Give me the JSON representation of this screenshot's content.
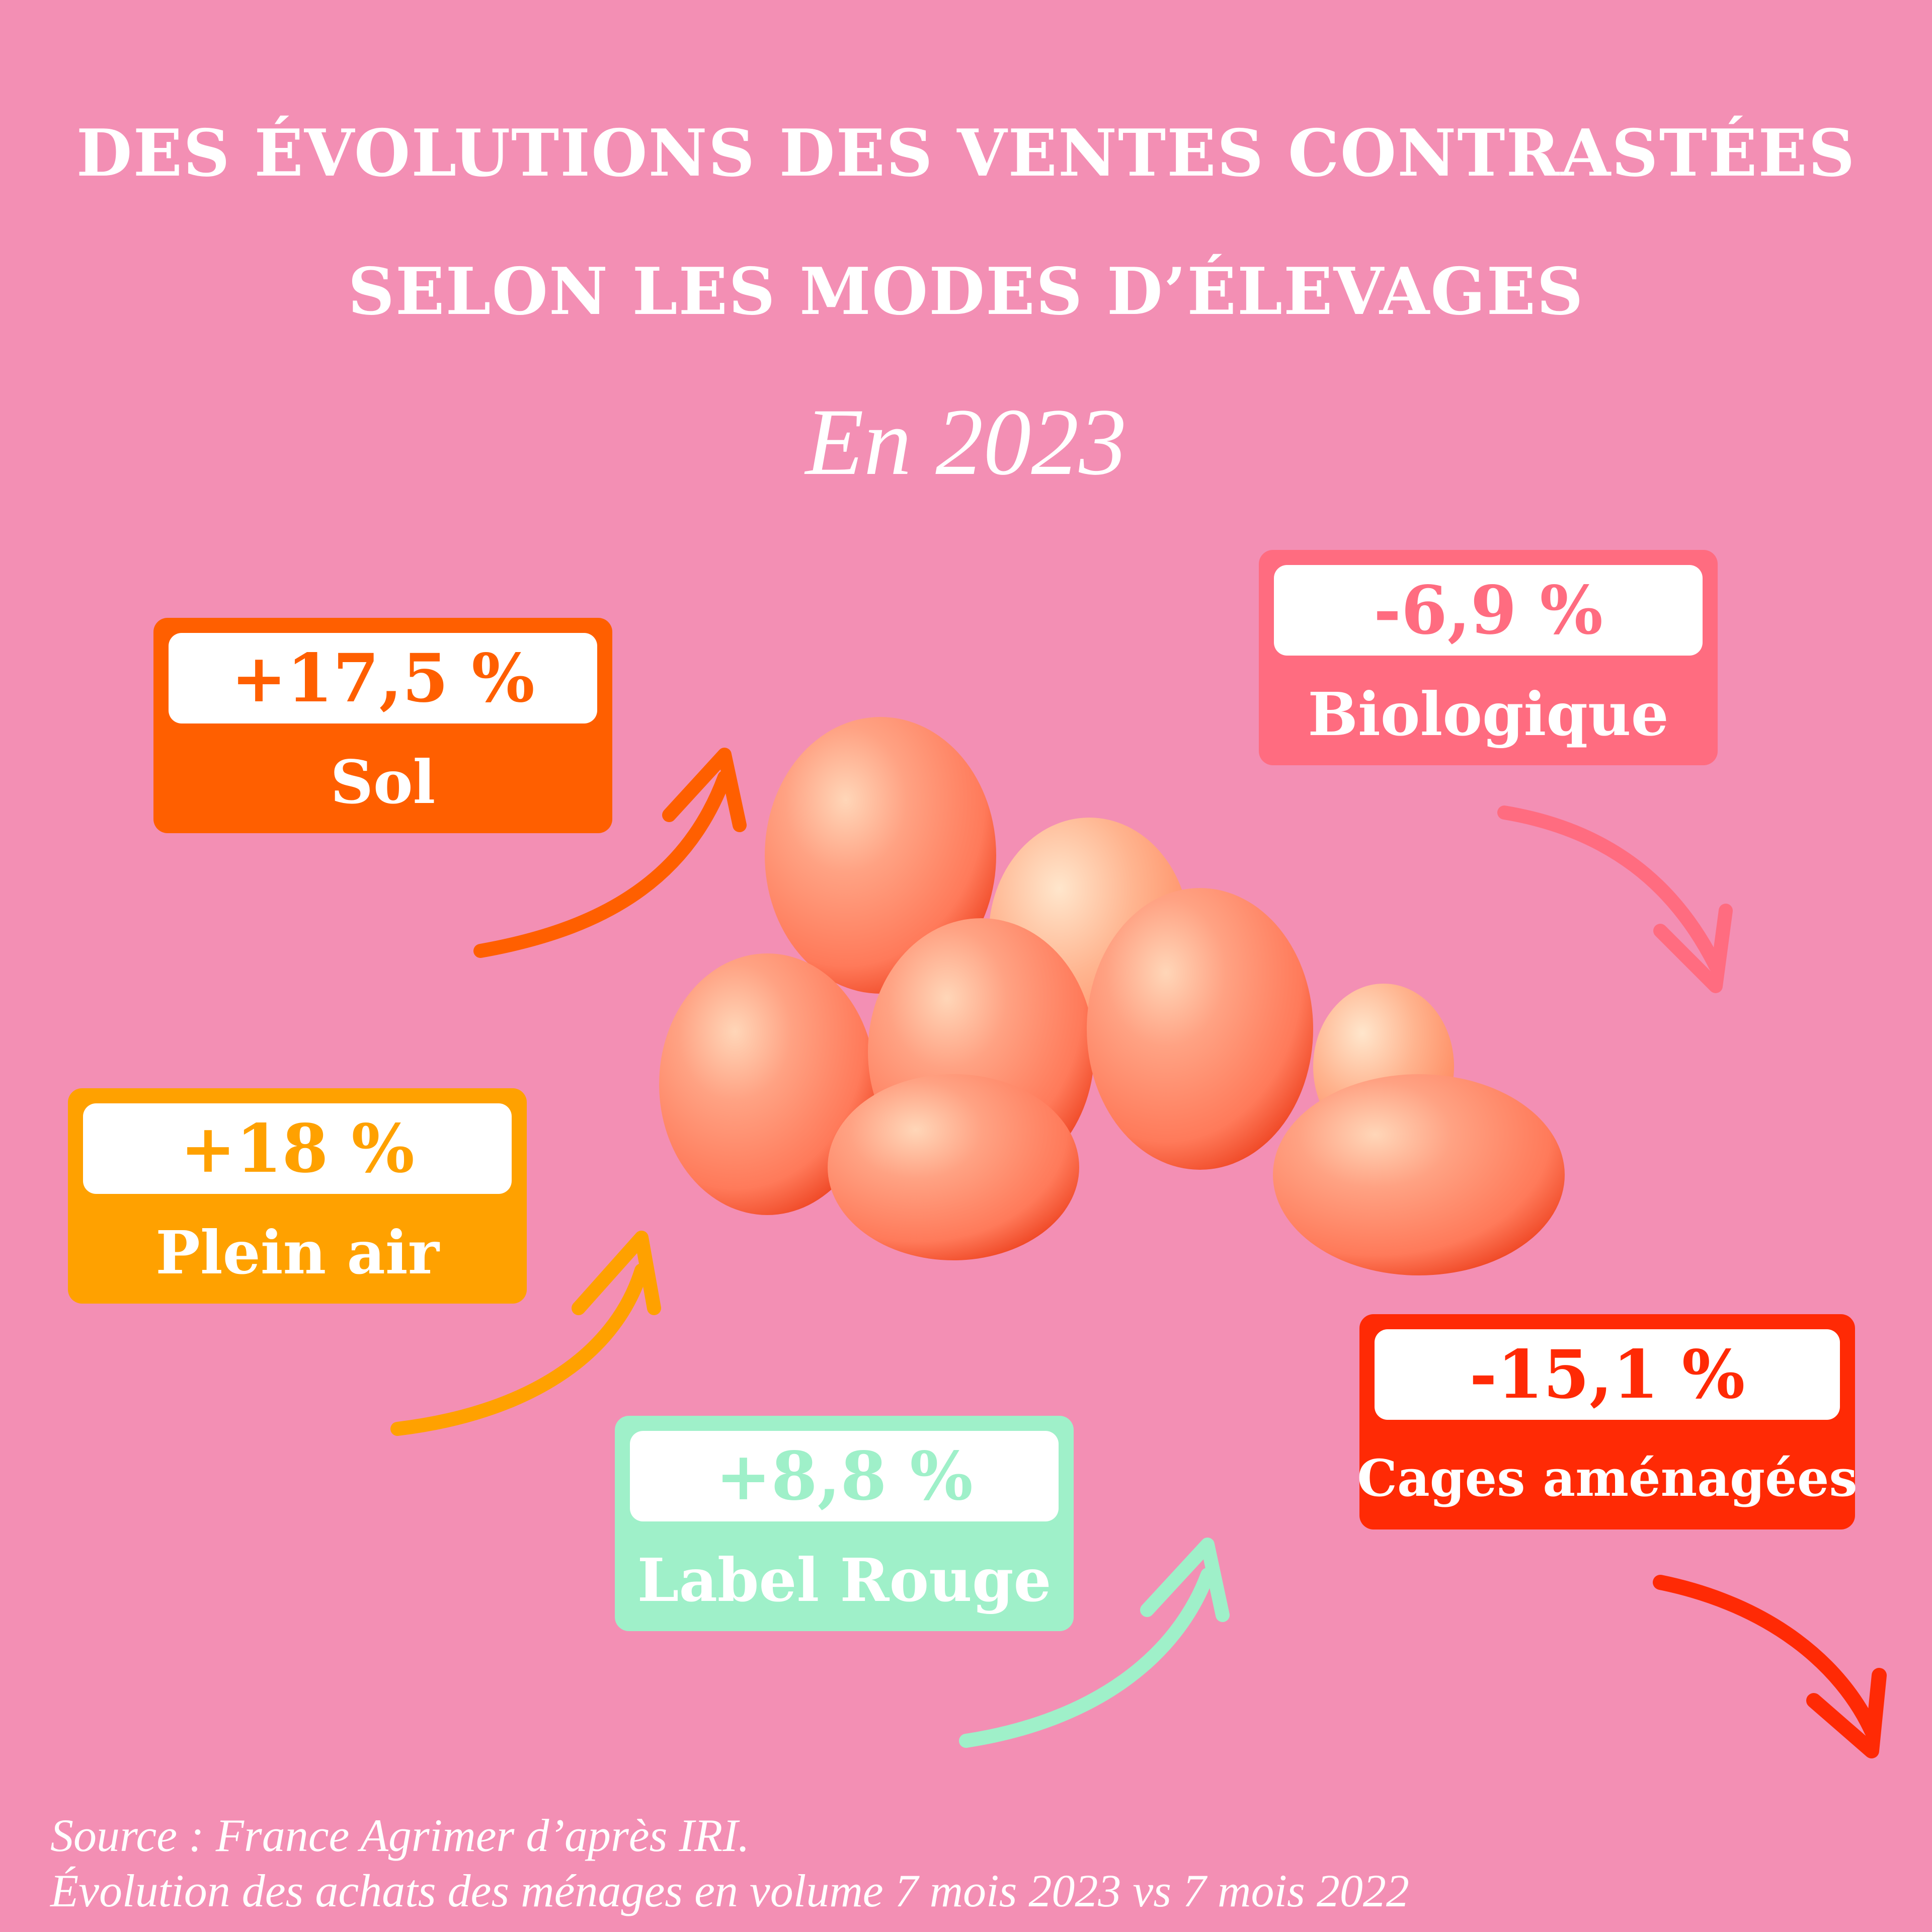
{
  "title": {
    "line1": "DES ÉVOLUTIONS DES VENTES CONTRASTÉES",
    "line2": "SELON LES MODES D’ÉLEVAGES",
    "subtitle": "En 2023"
  },
  "items": [
    {
      "label": "Sol",
      "value": "+17,5 %",
      "color": "#ff5f00",
      "trend": "up"
    },
    {
      "label": "Plein air",
      "value": "+18 %",
      "color": "#ffa100",
      "trend": "up"
    },
    {
      "label": "Label Rouge",
      "value": "+8,8 %",
      "color": "#9ff0c9",
      "trend": "up"
    },
    {
      "label": "Biologique",
      "value": "-6,9 %",
      "color": "#ff6c80",
      "trend": "down"
    },
    {
      "label": "Cages aménagées",
      "value": "-15,1 %",
      "color": "#ff2a05",
      "trend": "down"
    }
  ],
  "colors": {
    "background": "#f38fb4",
    "egg": "#ff8a6a"
  },
  "source": {
    "line1": "Source : France Agrimer d’après IRI.",
    "line2": "Évolution des achats des ménages en volume 7 mois 2023 vs 7 mois 2022"
  }
}
